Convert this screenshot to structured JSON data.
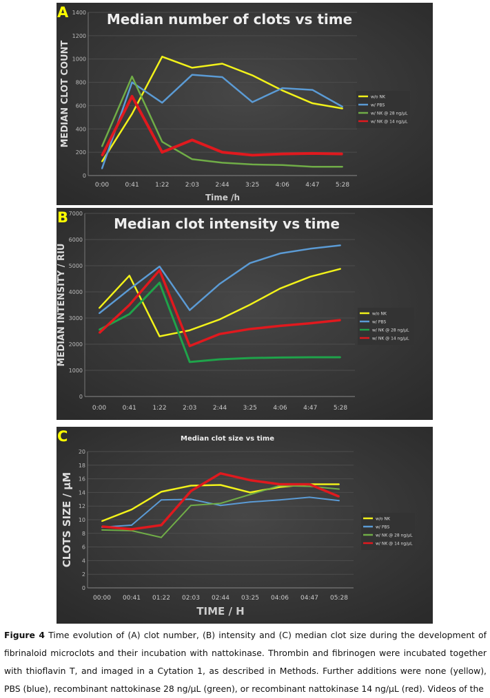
{
  "colors": {
    "yellow": "#f2f21a",
    "blue": "#5b9bd5",
    "green": "#70ad47",
    "green_b": "#1fa34a",
    "red": "#e0191e",
    "panel_bg": "#3b3b3b",
    "panel_letter": "#ffff00"
  },
  "chart_data": [
    {
      "panel": "A",
      "type": "line",
      "title": "Median number of clots vs time",
      "xlabel": "Time  /h",
      "ylabel": "MEDIAN CLOT COUNT",
      "categories": [
        "0:00",
        "0:41",
        "1:22",
        "2:03",
        "2:44",
        "3:25",
        "4:06",
        "4:47",
        "5:28"
      ],
      "ylim": [
        0,
        1400
      ],
      "yticks": [
        "0",
        "200",
        "400",
        "600",
        "800",
        "1000",
        "1200",
        "1400"
      ],
      "grid": true,
      "legend": "right",
      "error_bars": true,
      "series": [
        {
          "name": "w/o NK",
          "color": "yellow",
          "values": [
            120,
            530,
            1020,
            925,
            960,
            860,
            730,
            620,
            575
          ]
        },
        {
          "name": "w/ PBS",
          "color": "blue",
          "values": [
            60,
            800,
            625,
            865,
            845,
            630,
            750,
            735,
            590
          ]
        },
        {
          "name": "w/ NK @ 28 ng/µL",
          "color": "green",
          "values": [
            250,
            850,
            290,
            140,
            110,
            95,
            90,
            75,
            75
          ]
        },
        {
          "name": "w/ NK @ 14 ng/µL",
          "color": "red",
          "values": [
            170,
            680,
            200,
            305,
            200,
            175,
            185,
            190,
            185
          ]
        }
      ]
    },
    {
      "panel": "B",
      "type": "line",
      "title": "Median clot intensity vs time",
      "xlabel": "",
      "ylabel": "MEDIAN INTENSITY / RIU",
      "categories": [
        "0:00",
        "0:41",
        "1:22",
        "2:03",
        "2:44",
        "3:25",
        "4:06",
        "4:47",
        "5:28"
      ],
      "ylim": [
        0,
        7000
      ],
      "yticks": [
        "0",
        "1000",
        "2000",
        "3000",
        "4000",
        "5000",
        "6000",
        "7000"
      ],
      "grid": true,
      "legend": "right",
      "error_bars": true,
      "series": [
        {
          "name": "w/o NK",
          "color": "yellow",
          "values": [
            3380,
            4620,
            2300,
            2530,
            2950,
            3510,
            4130,
            4580,
            4880
          ]
        },
        {
          "name": "w/ PBS",
          "color": "blue",
          "values": [
            3180,
            4100,
            4970,
            3300,
            4310,
            5100,
            5470,
            5650,
            5780
          ]
        },
        {
          "name": "w/ NK @ 28 ng/µL",
          "color": "green_b",
          "values": [
            2550,
            3150,
            4350,
            1320,
            1420,
            1470,
            1490,
            1500,
            1500
          ]
        },
        {
          "name": "w/ NK @ 14 ng/µL",
          "color": "red",
          "values": [
            2430,
            3500,
            4830,
            1930,
            2390,
            2580,
            2700,
            2800,
            2920
          ]
        }
      ]
    },
    {
      "panel": "C",
      "type": "line",
      "title": "Median clot size vs time",
      "xlabel": "TIME / H",
      "ylabel": "CLOTS SIZE / µM",
      "categories": [
        "00:00",
        "00:41",
        "01:22",
        "02:03",
        "02:44",
        "03:25",
        "04:06",
        "04:47",
        "05:28"
      ],
      "ylim": [
        0,
        20
      ],
      "yticks": [
        "0",
        "2",
        "4",
        "6",
        "8",
        "10",
        "12",
        "14",
        "16",
        "18",
        "20"
      ],
      "grid": true,
      "legend": "right",
      "error_bars": true,
      "series": [
        {
          "name": "w/o NK",
          "color": "yellow",
          "values": [
            9.8,
            11.5,
            14.1,
            15.0,
            15.1,
            14.0,
            14.8,
            15.2,
            15.2
          ]
        },
        {
          "name": "w/ PBS",
          "color": "blue",
          "values": [
            8.9,
            9.2,
            12.9,
            13.0,
            12.1,
            12.6,
            12.9,
            13.3,
            12.8
          ]
        },
        {
          "name": "w/ NK @ 28 ng/µL",
          "color": "green",
          "values": [
            8.5,
            8.4,
            7.4,
            12.1,
            12.4,
            13.7,
            15.0,
            14.9,
            14.5
          ]
        },
        {
          "name": "w/ NK @ 14 ng/µL",
          "color": "red",
          "values": [
            9.0,
            8.6,
            9.2,
            14.2,
            16.8,
            15.8,
            15.2,
            15.2,
            13.4
          ]
        }
      ]
    }
  ],
  "caption": {
    "label": "Figure 4",
    "text": " Time evolution of (A) clot number, (B) intensity and (C) median clot size during the development of fibrinaloid microclots and their incubation with nattokinase. Thrombin and fibrinogen were incubated together with thioflavin T, and imaged in a Cytation 1, as described in Methods. Further additions were none (yellow), PBS (blue), recombinant nattokinase 28 ng/µL (green), or recombinant nattokinase 14 ng/µL (red). Videos of the"
  }
}
